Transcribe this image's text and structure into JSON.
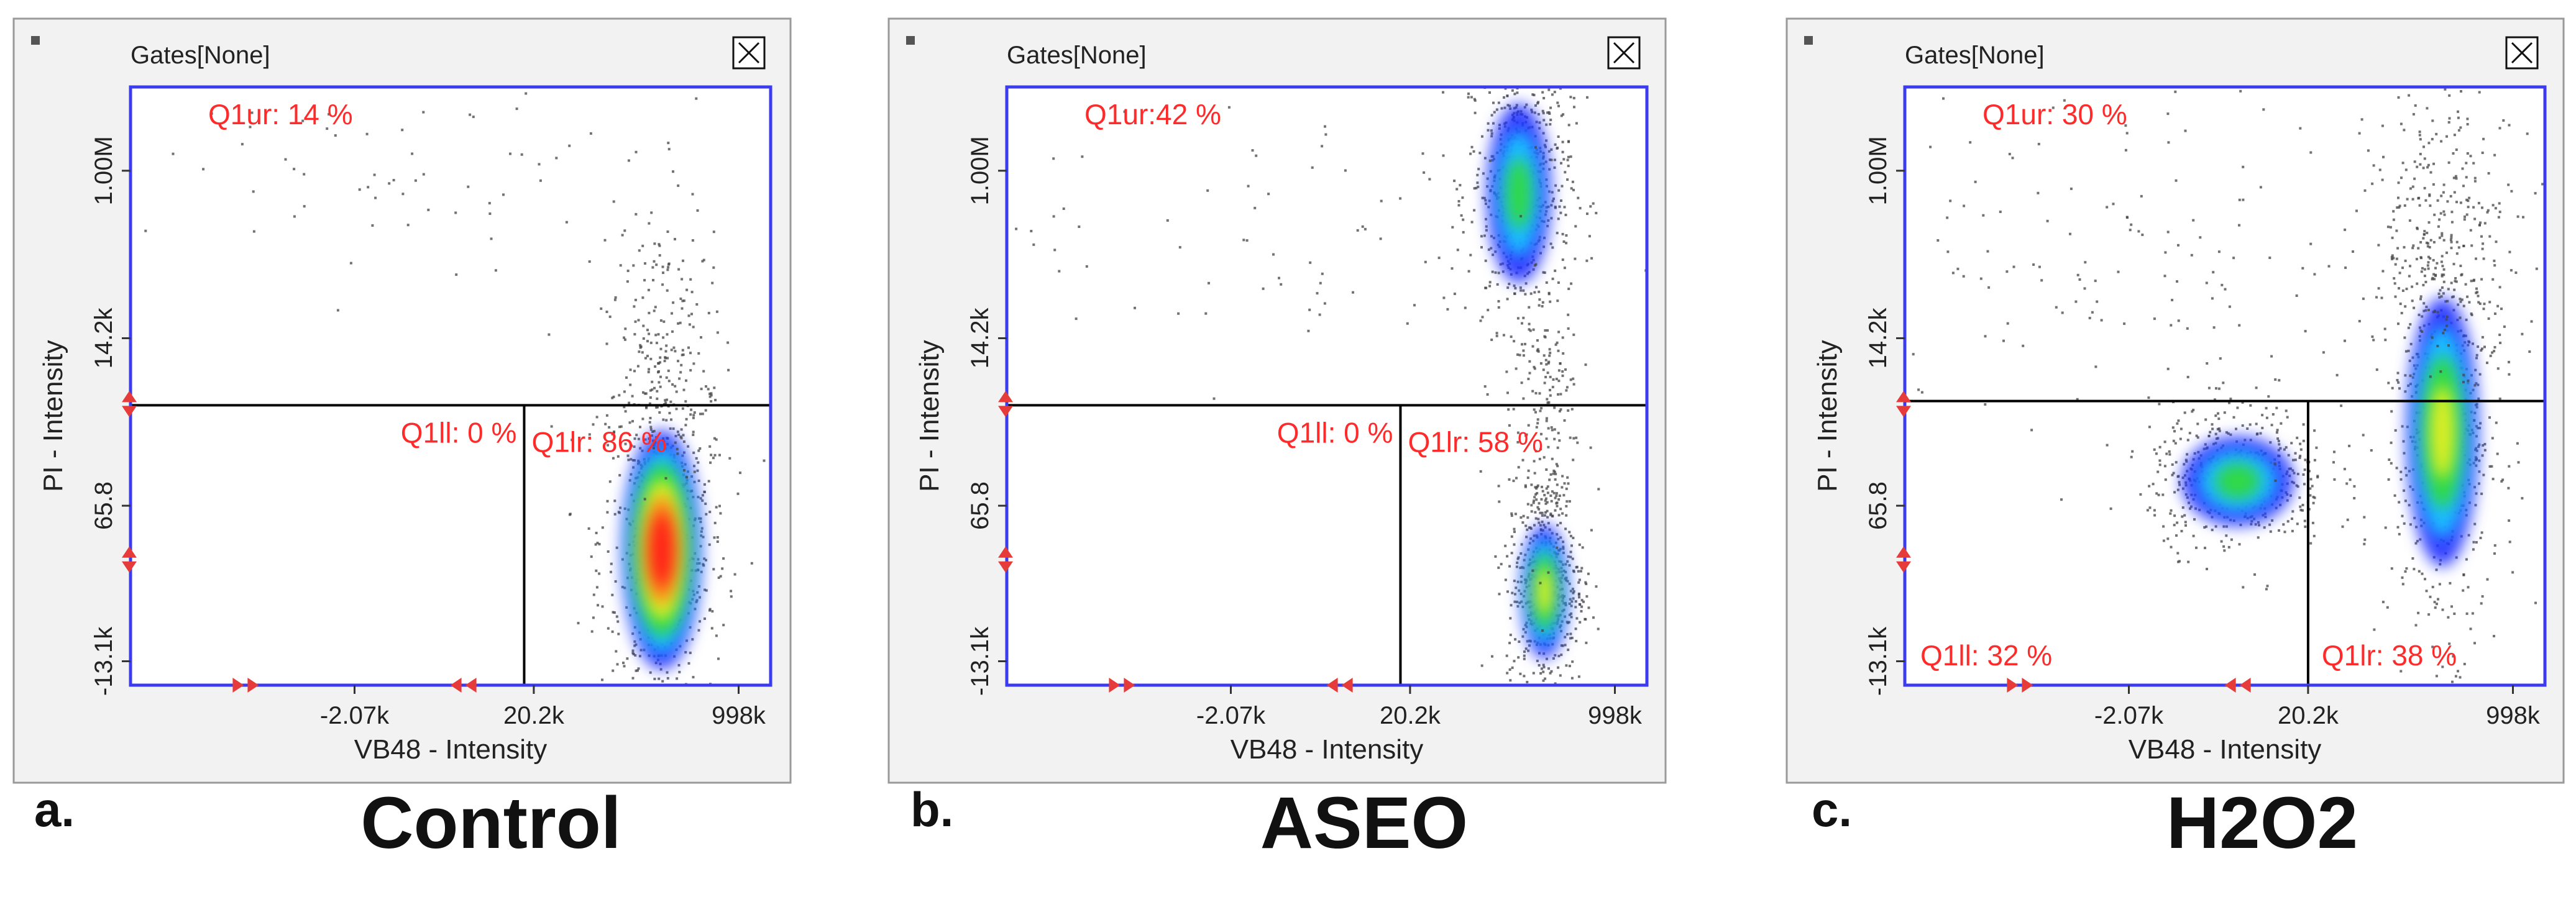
{
  "colors": {
    "panel_bg": "#f2f2f2",
    "panel_border": "#9a9a9a",
    "plot_bg": "#ffffff",
    "plot_border": "#3b3bf0",
    "divider": "#000000",
    "quad_label": "#ff2a2a",
    "marker": "#e53b3b",
    "event": "#444444",
    "density": [
      "#1d2dff",
      "#19c8ff",
      "#33dd33",
      "#f0ef22",
      "#ff7a1a",
      "#ff1a1a"
    ]
  },
  "panels": [
    {
      "letter": "a.",
      "caption": "Control",
      "header": "Gates[None]",
      "close_icon": "close-box-icon",
      "chart_data": {
        "type": "scatter",
        "title": "Control",
        "xlabel": "VB48 - Intensity",
        "ylabel": "PI - Intensity",
        "xticks": [
          "-2.07k",
          "20.2k",
          "998k"
        ],
        "yticks": [
          "-13.1k",
          "65.8",
          "14.2k",
          "1.00M"
        ],
        "quadrants": [
          {
            "id": "Q1ur",
            "text": "Q1ur: 14 %",
            "value": 14
          },
          {
            "id": "Q1ll",
            "text": "Q1ll: 0 %",
            "value": 0
          },
          {
            "id": "Q1lr",
            "text": "Q1lr: 86 %",
            "value": 86
          }
        ],
        "divider_x": 0.615,
        "divider_y": 0.468,
        "populations": [
          {
            "x": 0.83,
            "y": 0.25,
            "sx": 0.05,
            "sy": 0.16,
            "n": 700,
            "peak": 5
          },
          {
            "x": 0.82,
            "y": 0.58,
            "sx": 0.04,
            "sy": 0.12,
            "n": 160,
            "peak": 0
          },
          {
            "x": 0.5,
            "y": 0.85,
            "sx": 0.3,
            "sy": 0.1,
            "n": 80,
            "peak": 0
          }
        ]
      }
    },
    {
      "letter": "b.",
      "caption": "ASEO",
      "header": "Gates[None]",
      "close_icon": "close-box-icon",
      "chart_data": {
        "type": "scatter",
        "title": "ASEO",
        "xlabel": "VB48 - Intensity",
        "ylabel": "PI - Intensity",
        "xticks": [
          "-2.07k",
          "20.2k",
          "998k"
        ],
        "yticks": [
          "-13.1k",
          "65.8",
          "14.2k",
          "1.00M"
        ],
        "quadrants": [
          {
            "id": "Q1ur",
            "text": "Q1ur:42 %",
            "value": 42
          },
          {
            "id": "Q1ll",
            "text": "Q1ll: 0 %",
            "value": 0
          },
          {
            "id": "Q1lr",
            "text": "Q1lr: 58 %",
            "value": 58
          }
        ],
        "divider_x": 0.615,
        "divider_y": 0.468,
        "populations": [
          {
            "x": 0.8,
            "y": 0.84,
            "sx": 0.04,
            "sy": 0.12,
            "n": 650,
            "peak": 2
          },
          {
            "x": 0.84,
            "y": 0.17,
            "sx": 0.03,
            "sy": 0.09,
            "n": 550,
            "peak": 3
          },
          {
            "x": 0.84,
            "y": 0.45,
            "sx": 0.025,
            "sy": 0.12,
            "n": 160,
            "peak": 0
          },
          {
            "x": 0.45,
            "y": 0.75,
            "sx": 0.25,
            "sy": 0.12,
            "n": 80,
            "peak": 0
          }
        ]
      }
    },
    {
      "letter": "c.",
      "caption": "H2O2",
      "header": "Gates[None]",
      "close_icon": "close-box-icon",
      "chart_data": {
        "type": "scatter",
        "title": "H2O2",
        "xlabel": "VB48 - Intensity",
        "ylabel": "PI - Intensity",
        "xticks": [
          "-2.07k",
          "20.2k",
          "998k"
        ],
        "yticks": [
          "-13.1k",
          "65.8",
          "14.2k",
          "1.00M"
        ],
        "quadrants": [
          {
            "id": "Q1ur",
            "text": "Q1ur: 30 %",
            "value": 30
          },
          {
            "id": "Q1ll",
            "text": "Q1ll: 32 %",
            "value": 32
          },
          {
            "id": "Q1lr",
            "text": "Q1lr: 38 %",
            "value": 38
          }
        ],
        "divider_x": 0.63,
        "divider_y": 0.475,
        "populations": [
          {
            "x": 0.52,
            "y": 0.35,
            "sx": 0.07,
            "sy": 0.06,
            "n": 500,
            "peak": 2
          },
          {
            "x": 0.84,
            "y": 0.45,
            "sx": 0.045,
            "sy": 0.18,
            "n": 650,
            "peak": 3
          },
          {
            "x": 0.84,
            "y": 0.78,
            "sx": 0.06,
            "sy": 0.12,
            "n": 220,
            "peak": 0
          },
          {
            "x": 0.4,
            "y": 0.72,
            "sx": 0.25,
            "sy": 0.15,
            "n": 160,
            "peak": 0
          }
        ]
      }
    }
  ]
}
